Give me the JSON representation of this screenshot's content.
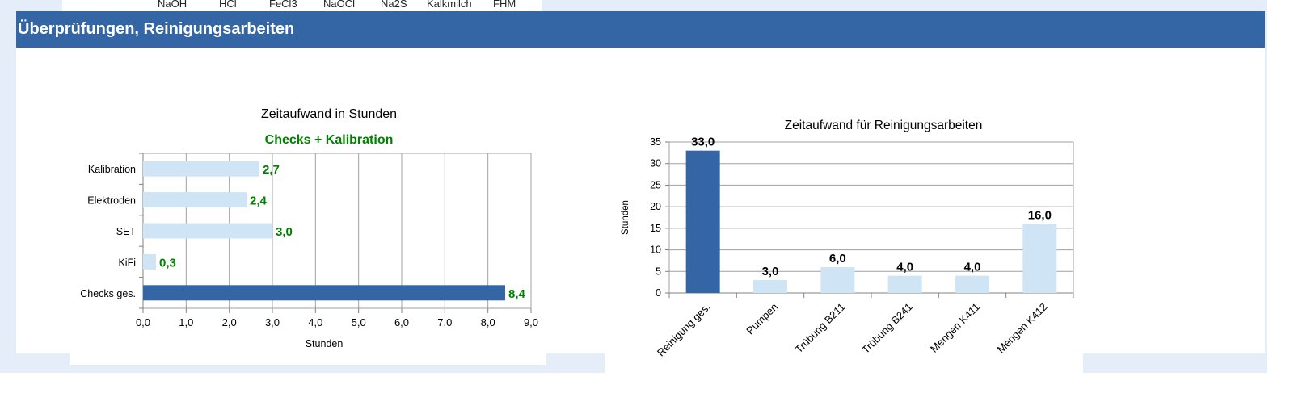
{
  "top_columns": [
    "NaOH",
    "HCl",
    "FeCl3",
    "NaOCl",
    "Na2S",
    "Kalkmilch",
    "FHM"
  ],
  "section": {
    "title": "Überprüfungen, Reinigungsarbeiten",
    "header_color": "#3465a4"
  },
  "colors": {
    "dark_bar": "#3465a4",
    "light_bar": "#cfe4f5",
    "green_label": "#008000"
  },
  "chart_data": [
    {
      "type": "bar",
      "orientation": "horizontal",
      "title": "Zeitaufwand in Stunden",
      "subtitle": "Checks + Kalibration",
      "xlabel": "Stunden",
      "ylabel": "",
      "xlim": [
        0,
        9
      ],
      "x_ticks": [
        "0,0",
        "1,0",
        "2,0",
        "3,0",
        "4,0",
        "5,0",
        "6,0",
        "7,0",
        "8,0",
        "9,0"
      ],
      "categories": [
        "Kalibration",
        "Elektroden",
        "SET",
        "KiFi",
        "Checks ges."
      ],
      "values": [
        2.7,
        2.4,
        3.0,
        0.3,
        8.4
      ],
      "value_labels": [
        "2,7",
        "2,4",
        "3,0",
        "0,3",
        "8,4"
      ],
      "highlight": [
        false,
        false,
        false,
        false,
        true
      ],
      "grid": true
    },
    {
      "type": "bar",
      "orientation": "vertical",
      "title": "Zeitaufwand für Reinigungsarbeiten",
      "xlabel": "",
      "ylabel": "Stunden",
      "ylim": [
        0,
        35
      ],
      "y_ticks": [
        "0",
        "5",
        "10",
        "15",
        "20",
        "25",
        "30",
        "35"
      ],
      "categories": [
        "Reinigung ges.",
        "Pumpen",
        "Trübung B211",
        "Trübung B241",
        "Mengen K411",
        "Mengen K412"
      ],
      "values": [
        33.0,
        3.0,
        6.0,
        4.0,
        4.0,
        16.0
      ],
      "value_labels": [
        "33,0",
        "3,0",
        "6,0",
        "4,0",
        "4,0",
        "16,0"
      ],
      "highlight": [
        true,
        false,
        false,
        false,
        false,
        false
      ],
      "grid": true
    }
  ]
}
